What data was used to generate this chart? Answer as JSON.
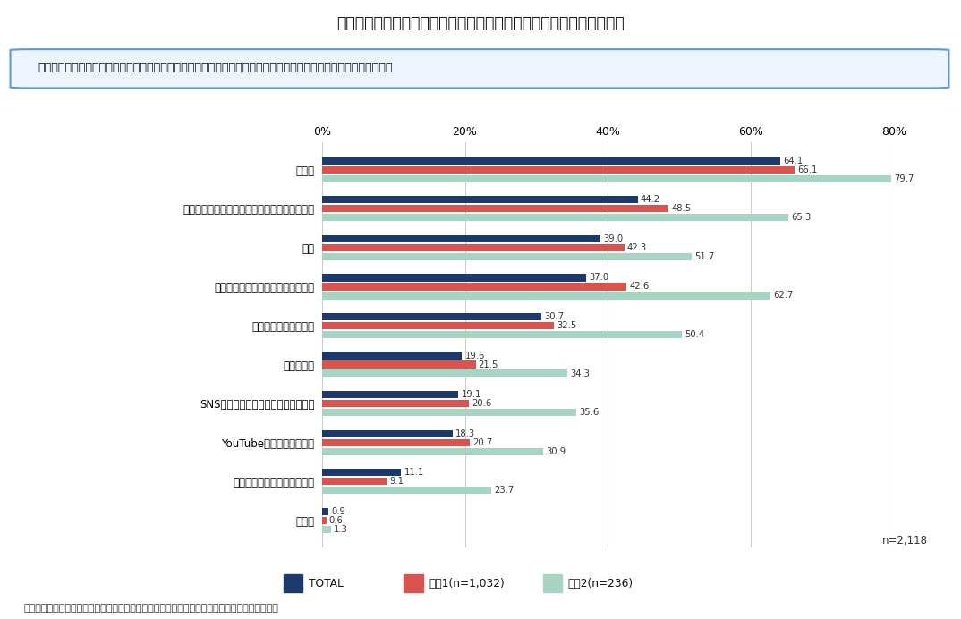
{
  "title": "図２　価格や制度、価値について知ることへの望ましいと考える手段",
  "question": "質問：薬の価格や制度、価値を伝えるためには、どのような手段が望ましいと思いますか。（あてはまるもの全て）",
  "categories": [
    "テレビ",
    "医師や看護師、薬剤師等、医療従事者から聞く",
    "新聞",
    "学校教育など、何らかの場面で習う",
    "ウェブサイト・アプリ",
    "雑誌、書籍",
    "SNSやブログ等のコミュニティサイト",
    "YouTubeなどの動画サイト",
    "家族や友人、知人等から聞く",
    "その他"
  ],
  "total": [
    64.1,
    44.2,
    39.0,
    37.0,
    30.7,
    19.6,
    19.1,
    18.3,
    11.1,
    0.9
  ],
  "group1": [
    66.1,
    48.5,
    42.3,
    42.6,
    32.5,
    21.5,
    20.6,
    20.7,
    9.1,
    0.6
  ],
  "group2": [
    79.7,
    65.3,
    51.7,
    62.7,
    50.4,
    34.3,
    35.6,
    30.9,
    23.7,
    1.3
  ],
  "color_total": "#1b3a6b",
  "color_group1": "#d9534f",
  "color_group2": "#a8d5c2",
  "legend_labels": [
    "TOTAL",
    "集団1(n=1,032)",
    "集団2(n=236)"
  ],
  "note": "n=2,118",
  "source": "出所：「医薬品の価格や制度、価値に関する意識調査」結果を基に医薬産業政策研究所にて作成",
  "xlim": [
    0,
    80
  ],
  "xticks": [
    0,
    20,
    40,
    60,
    80
  ],
  "xticklabels": [
    "0%",
    "20%",
    "40%",
    "60%",
    "80%"
  ]
}
